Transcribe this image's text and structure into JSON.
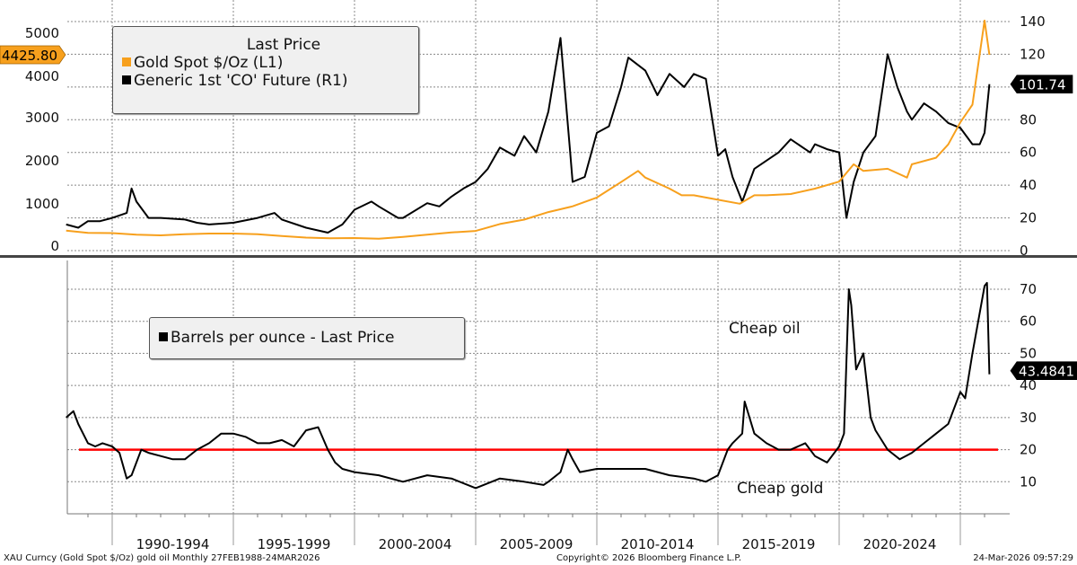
{
  "chart_data": [
    {
      "type": "line",
      "panel": "upper",
      "title": "",
      "legend": {
        "title": "Last Price",
        "placement": "top-left",
        "entries": [
          {
            "label": "Gold Spot $/Oz  (L1)",
            "color": "#f7a01d"
          },
          {
            "label": "Generic 1st 'CO' Future  (R1)",
            "color": "#000000"
          }
        ]
      },
      "left_axis": {
        "ticks": [
          "0",
          "1000",
          "2000",
          "3000",
          "4000",
          "5000"
        ],
        "range": [
          0,
          5000
        ]
      },
      "right_axis": {
        "ticks": [
          "0",
          "20",
          "40",
          "60",
          "80",
          "100",
          "120",
          "140"
        ],
        "range": [
          0,
          140
        ]
      },
      "last_value_labels": [
        {
          "series": "Gold Spot $/Oz",
          "value": "4425.80",
          "axis": "left",
          "bg": "#f7a01d",
          "fg": "#000000"
        },
        {
          "series": "Generic 1st 'CO' Future",
          "value": "101.74",
          "axis": "right",
          "bg": "#000000",
          "fg": "#ffffff"
        }
      ],
      "series": [
        {
          "name": "Gold Spot $/Oz",
          "axis": "left",
          "color": "#f7a01d",
          "x": [
            1988.1,
            1989,
            1990,
            1991,
            1992,
            1993,
            1994,
            1995,
            1996,
            1997,
            1998,
            1999,
            2000,
            2001,
            2002,
            2003,
            2004,
            2005,
            2006,
            2007,
            2008,
            2009,
            2010,
            2011,
            2011.7,
            2012,
            2013,
            2013.5,
            2014,
            2015,
            2015.9,
            2016.5,
            2017,
            2018,
            2019,
            2020,
            2020.6,
            2021,
            2022,
            2022.8,
            2023,
            2024,
            2024.5,
            2025,
            2025.5,
            2026,
            2026.2
          ],
          "values": [
            450,
            400,
            395,
            360,
            345,
            370,
            385,
            385,
            370,
            330,
            295,
            280,
            285,
            270,
            310,
            360,
            410,
            445,
            600,
            700,
            870,
            1000,
            1200,
            1550,
            1800,
            1650,
            1400,
            1250,
            1250,
            1150,
            1060,
            1250,
            1250,
            1280,
            1400,
            1560,
            1950,
            1800,
            1850,
            1650,
            1950,
            2100,
            2400,
            2900,
            3300,
            5200,
            4425.8
          ]
        },
        {
          "name": "Generic 1st 'CO' Future",
          "axis": "right",
          "color": "#000000",
          "x": [
            1988.1,
            1988.6,
            1989,
            1989.5,
            1990,
            1990.6,
            1990.8,
            1991,
            1991.5,
            1992,
            1993,
            1993.5,
            1994,
            1995,
            1996,
            1996.7,
            1997,
            1998,
            1998.9,
            1999.5,
            2000,
            2000.7,
            2001,
            2001.8,
            2002,
            2003,
            2003.5,
            2004,
            2004.5,
            2005,
            2005.5,
            2006,
            2006.6,
            2007,
            2007.5,
            2008,
            2008.5,
            2008.9,
            2009,
            2009.5,
            2010,
            2010.5,
            2011,
            2011.3,
            2012,
            2012.5,
            2013,
            2013.6,
            2014,
            2014.5,
            2015,
            2015.3,
            2015.6,
            2016,
            2016.1,
            2016.5,
            2017,
            2017.5,
            2018,
            2018.8,
            2019,
            2019.5,
            2020,
            2020.3,
            2020.6,
            2021,
            2021.5,
            2022,
            2022.4,
            2022.8,
            2023,
            2023.5,
            2024,
            2024.5,
            2025,
            2025.5,
            2025.8,
            2026,
            2026.2
          ],
          "values": [
            16,
            14,
            18,
            18,
            20,
            23,
            38,
            30,
            20,
            20,
            19,
            17,
            16,
            17,
            20,
            23,
            19,
            14,
            11,
            16,
            25,
            30,
            27,
            20,
            20,
            29,
            27,
            33,
            38,
            42,
            50,
            63,
            58,
            70,
            60,
            85,
            130,
            60,
            42,
            45,
            72,
            76,
            100,
            118,
            110,
            95,
            108,
            100,
            108,
            105,
            58,
            62,
            45,
            30,
            34,
            50,
            55,
            60,
            68,
            60,
            65,
            62,
            60,
            20,
            42,
            60,
            70,
            120,
            100,
            85,
            80,
            90,
            85,
            78,
            75,
            65,
            65,
            72,
            101.74
          ]
        }
      ]
    },
    {
      "type": "line",
      "panel": "lower",
      "title": "",
      "legend": {
        "placement": "top-left",
        "entries": [
          {
            "label": "Barrels per ounce - Last Price",
            "color": "#000000"
          }
        ]
      },
      "right_axis": {
        "ticks": [
          "10",
          "20",
          "30",
          "40",
          "50",
          "60",
          "70"
        ],
        "range": [
          0,
          75
        ]
      },
      "reference_line": {
        "value": 20,
        "color": "#ff0000"
      },
      "annotations": [
        "Cheap oil",
        "Cheap gold"
      ],
      "last_value_label": {
        "value": "43.4841",
        "bg": "#000000",
        "fg": "#ffffff"
      },
      "series": [
        {
          "name": "Barrels per ounce",
          "color": "#000000",
          "x": [
            1988.1,
            1988.4,
            1988.6,
            1989,
            1989.3,
            1989.6,
            1990,
            1990.3,
            1990.6,
            1990.8,
            1991.2,
            1991.5,
            1992,
            1992.5,
            1993,
            1993.5,
            1994,
            1994.5,
            1995,
            1995.5,
            1996,
            1996.5,
            1997,
            1997.5,
            1998,
            1998.5,
            1998.9,
            1999.2,
            1999.5,
            2000,
            2001,
            2002,
            2003,
            2004,
            2005,
            2006,
            2007,
            2007.8,
            2008,
            2008.5,
            2008.8,
            2009,
            2009.3,
            2010,
            2011,
            2012,
            2013,
            2014,
            2014.5,
            2015,
            2015.4,
            2015.6,
            2016,
            2016.1,
            2016.5,
            2017,
            2017.5,
            2018,
            2018.6,
            2019,
            2019.5,
            2020,
            2020.2,
            2020.4,
            2020.5,
            2020.7,
            2021,
            2021.3,
            2021.5,
            2022,
            2022.5,
            2023,
            2023.5,
            2024,
            2024.5,
            2025,
            2025.2,
            2025.5,
            2026,
            2026.1,
            2026.2
          ],
          "values": [
            30,
            32,
            28,
            22,
            21,
            22,
            21,
            19,
            11,
            12,
            20,
            19,
            18,
            17,
            17,
            20,
            22,
            25,
            25,
            24,
            22,
            22,
            23,
            21,
            26,
            27,
            20,
            16,
            14,
            13,
            12,
            10,
            12,
            11,
            8,
            11,
            10,
            9,
            10,
            13,
            20,
            17,
            13,
            14,
            14,
            14,
            12,
            11,
            10,
            12,
            20,
            22,
            25,
            35,
            25,
            22,
            20,
            20,
            22,
            18,
            16,
            21,
            25,
            70,
            65,
            45,
            50,
            30,
            26,
            20,
            17,
            19,
            22,
            25,
            28,
            38,
            36,
            50,
            71,
            72,
            43.4841
          ]
        }
      ]
    }
  ],
  "x_axis": {
    "periods": [
      "1990-1994",
      "1995-1999",
      "2000-2004",
      "2005-2009",
      "2010-2014",
      "2015-2019",
      "2020-2024"
    ],
    "range": [
      1988.1,
      2026.25
    ]
  },
  "footer": {
    "left": "XAU Curncy (Gold Spot   $/Oz) gold oil Monthly 27FEB1988-24MAR2026",
    "center": "Copyright© 2026 Bloomberg Finance L.P.",
    "right": "24-Mar-2026 09:57:29"
  }
}
